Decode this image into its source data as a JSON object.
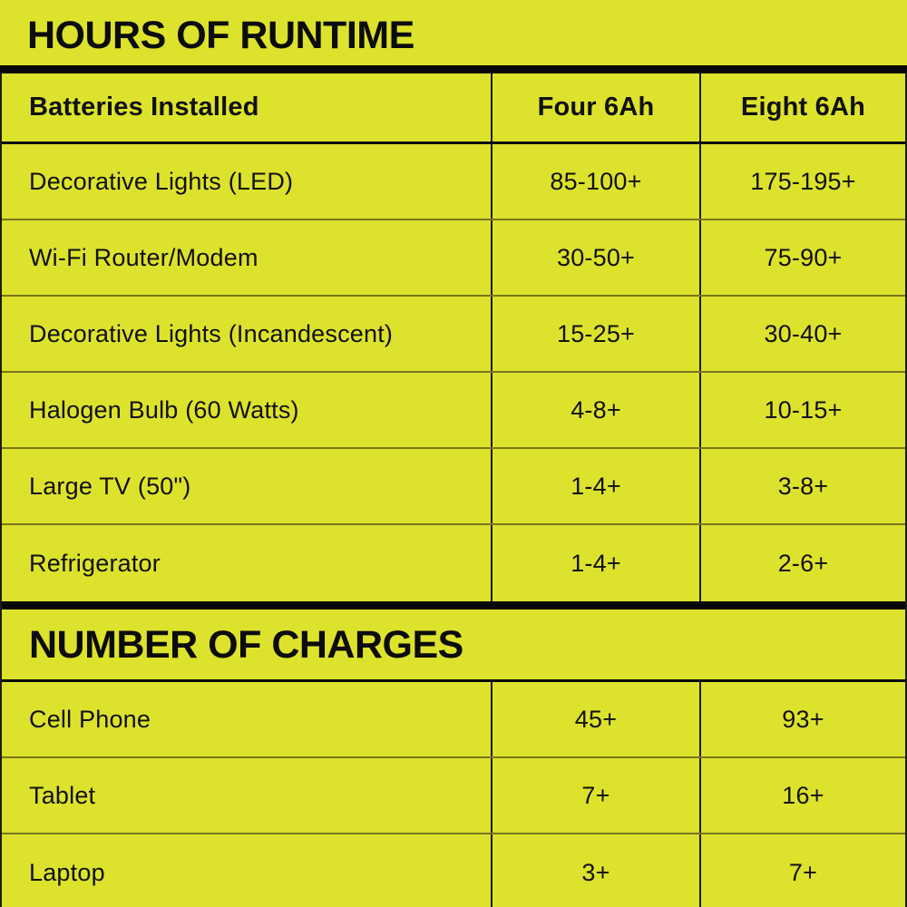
{
  "colors": {
    "background": "#dde22d",
    "text": "#111111",
    "thick_rule": "#070707",
    "row_divider": "#76771d",
    "column_divider": "#1a1a1a"
  },
  "chart_data": [
    {
      "type": "table",
      "title": "HOURS OF RUNTIME",
      "columns": [
        "Batteries Installed",
        "Four 6Ah",
        "Eight 6Ah"
      ],
      "rows": [
        {
          "label": "Decorative Lights (LED)",
          "values": [
            "85-100+",
            "175-195+"
          ]
        },
        {
          "label": "Wi-Fi Router/Modem",
          "values": [
            "30-50+",
            "75-90+"
          ]
        },
        {
          "label": "Decorative Lights (Incandescent)",
          "values": [
            "15-25+",
            "30-40+"
          ]
        },
        {
          "label": "Halogen Bulb (60 Watts)",
          "values": [
            "4-8+",
            "10-15+"
          ]
        },
        {
          "label": "Large TV (50\")",
          "values": [
            "1-4+",
            "3-8+"
          ]
        },
        {
          "label": "Refrigerator",
          "values": [
            "1-4+",
            "2-6+"
          ]
        }
      ]
    },
    {
      "type": "table",
      "title": "NUMBER OF CHARGES",
      "rows": [
        {
          "label": "Cell Phone",
          "values": [
            "45+",
            "93+"
          ]
        },
        {
          "label": "Tablet",
          "values": [
            "7+",
            "16+"
          ]
        },
        {
          "label": "Laptop",
          "values": [
            "3+",
            "7+"
          ]
        }
      ]
    }
  ]
}
